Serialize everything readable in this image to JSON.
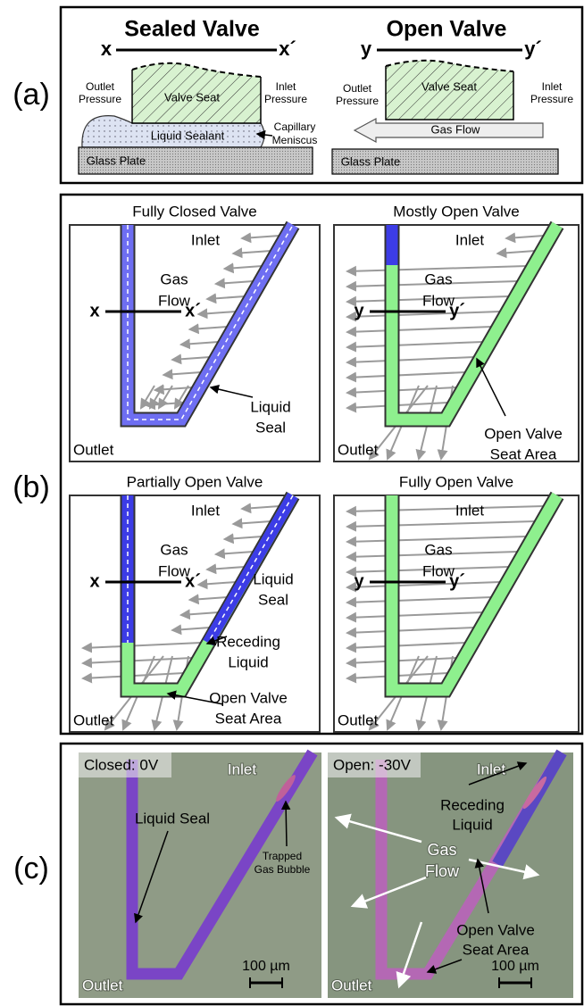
{
  "panel_a": {
    "label": "(a)",
    "sealed": {
      "title": "Sealed Valve",
      "cut": [
        "x",
        "x´"
      ],
      "seat": "Valve Seat",
      "outlet": [
        "Outlet",
        "Pressure"
      ],
      "inlet": [
        "Inlet",
        "Pressure"
      ],
      "sealant": "Liquid Sealant",
      "meniscus": [
        "Capillary",
        "Meniscus"
      ],
      "plate": "Glass Plate"
    },
    "open": {
      "title": "Open Valve",
      "cut": [
        "y",
        "y´"
      ],
      "seat": "Valve Seat",
      "outlet": [
        "Outlet",
        "Pressure"
      ],
      "inlet": [
        "Inlet",
        "Pressure"
      ],
      "flow": "Gas Flow",
      "plate": "Glass Plate"
    }
  },
  "panel_b": {
    "label": "(b)",
    "diagrams": [
      {
        "title": "Fully Closed Valve",
        "inlet": "Inlet",
        "flow": [
          "Gas",
          "Flow"
        ],
        "cut": [
          "x",
          "x´"
        ],
        "outlet": "Outlet",
        "notes": [
          [
            "Liquid",
            "Seal"
          ]
        ]
      },
      {
        "title": "Mostly Open Valve",
        "inlet": "Inlet",
        "flow": [
          "Gas",
          "Flow"
        ],
        "cut": [
          "y",
          "y´"
        ],
        "outlet": "Outlet",
        "notes": [
          [
            "Open Valve",
            "Seat Area"
          ]
        ]
      },
      {
        "title": "Partially Open Valve",
        "inlet": "Inlet",
        "flow": [
          "Gas",
          "Flow"
        ],
        "cut": [
          "x",
          "x´"
        ],
        "outlet": "Outlet",
        "notes": [
          [
            "Liquid",
            "Seal"
          ],
          [
            "Receding",
            "Liquid"
          ],
          [
            "Open Valve",
            "Seat Area"
          ]
        ]
      },
      {
        "title": "Fully Open Valve",
        "inlet": "Inlet",
        "flow": [
          "Gas",
          "Flow"
        ],
        "cut": [
          "y",
          "y´"
        ],
        "outlet": "Outlet",
        "notes": []
      }
    ]
  },
  "panel_c": {
    "label": "(c)",
    "photos": [
      {
        "state": "Closed: 0V",
        "inlet": "Inlet",
        "outlet": "Outlet",
        "notes": [
          [
            "Liquid Seal"
          ],
          [
            "Trapped",
            "Gas Bubble"
          ]
        ],
        "scale": "100 µm"
      },
      {
        "state": "Open: -30V",
        "inlet": "Inlet",
        "outlet": "Outlet",
        "notes": [
          [
            "Receding",
            "Liquid"
          ],
          [
            "Gas",
            "Flow"
          ],
          [
            "Open Valve",
            "Seat Area"
          ]
        ],
        "scale": "100 µm"
      }
    ]
  }
}
